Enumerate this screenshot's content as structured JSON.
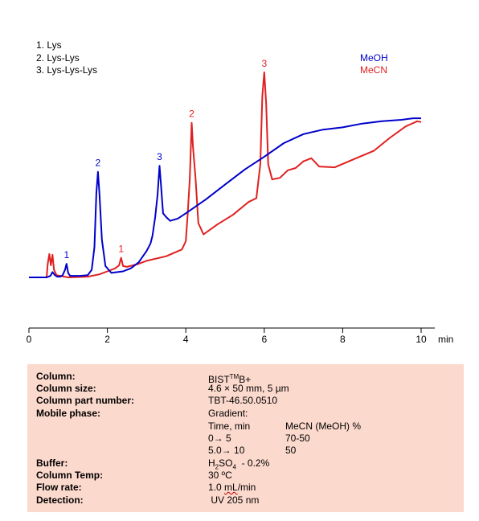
{
  "chart_data": {
    "type": "line",
    "x_axis": {
      "ticks": [
        0,
        2,
        4,
        6,
        8,
        10
      ],
      "tick_labels": [
        "0",
        "2",
        "4",
        "6",
        "8",
        "10"
      ],
      "unit_label": "min",
      "range": [
        0,
        10
      ]
    },
    "legend_peaks": [
      "1. Lys",
      "2. Lys-Lys",
      "3. Lys-Lys-Lys"
    ],
    "series": [
      {
        "name": "MeOH",
        "color": "#0000cc",
        "points": [
          [
            0,
            0
          ],
          [
            0.45,
            0
          ],
          [
            0.5,
            1
          ],
          [
            0.55,
            2
          ],
          [
            0.6,
            7
          ],
          [
            0.66,
            3
          ],
          [
            0.72,
            1
          ],
          [
            0.8,
            1
          ],
          [
            0.86,
            3
          ],
          [
            0.92,
            10
          ],
          [
            0.96,
            18
          ],
          [
            1.0,
            6
          ],
          [
            1.05,
            2
          ],
          [
            1.3,
            2
          ],
          [
            1.5,
            3
          ],
          [
            1.6,
            10
          ],
          [
            1.67,
            40
          ],
          [
            1.72,
            112
          ],
          [
            1.76,
            140
          ],
          [
            1.8,
            110
          ],
          [
            1.86,
            50
          ],
          [
            1.95,
            15
          ],
          [
            2.1,
            6
          ],
          [
            2.4,
            8
          ],
          [
            2.6,
            12
          ],
          [
            2.8,
            20
          ],
          [
            3.0,
            35
          ],
          [
            3.1,
            45
          ],
          [
            3.15,
            55
          ],
          [
            3.22,
            80
          ],
          [
            3.28,
            110
          ],
          [
            3.33,
            148
          ],
          [
            3.37,
            120
          ],
          [
            3.42,
            85
          ],
          [
            3.5,
            80
          ],
          [
            3.6,
            75
          ],
          [
            3.8,
            78
          ],
          [
            4.0,
            85
          ],
          [
            4.5,
            103
          ],
          [
            5.0,
            123
          ],
          [
            5.5,
            143
          ],
          [
            6.0,
            160
          ],
          [
            6.5,
            178
          ],
          [
            7.0,
            190
          ],
          [
            7.5,
            196
          ],
          [
            8.0,
            199
          ],
          [
            8.5,
            204
          ],
          [
            9.0,
            207
          ],
          [
            9.5,
            209
          ],
          [
            9.8,
            211
          ],
          [
            10.0,
            211
          ]
        ]
      },
      {
        "name": "MeCN",
        "color": "#e02020",
        "points": [
          [
            0,
            0
          ],
          [
            0.45,
            0
          ],
          [
            0.48,
            18
          ],
          [
            0.52,
            31
          ],
          [
            0.56,
            16
          ],
          [
            0.6,
            30
          ],
          [
            0.64,
            10
          ],
          [
            0.7,
            3
          ],
          [
            0.8,
            2
          ],
          [
            1.0,
            0
          ],
          [
            1.5,
            1
          ],
          [
            1.8,
            4
          ],
          [
            2.0,
            8
          ],
          [
            2.2,
            12
          ],
          [
            2.3,
            16
          ],
          [
            2.35,
            26
          ],
          [
            2.4,
            15
          ],
          [
            2.5,
            14
          ],
          [
            2.8,
            18
          ],
          [
            3.0,
            22
          ],
          [
            3.5,
            28
          ],
          [
            3.9,
            37
          ],
          [
            4.0,
            48
          ],
          [
            4.05,
            85
          ],
          [
            4.1,
            130
          ],
          [
            4.15,
            205
          ],
          [
            4.18,
            175
          ],
          [
            4.25,
            130
          ],
          [
            4.32,
            72
          ],
          [
            4.45,
            57
          ],
          [
            4.8,
            70
          ],
          [
            5.2,
            83
          ],
          [
            5.6,
            100
          ],
          [
            5.8,
            105
          ],
          [
            5.9,
            150
          ],
          [
            5.95,
            240
          ],
          [
            6.0,
            272
          ],
          [
            6.05,
            230
          ],
          [
            6.1,
            150
          ],
          [
            6.2,
            130
          ],
          [
            6.4,
            132
          ],
          [
            6.6,
            142
          ],
          [
            6.8,
            145
          ],
          [
            7.0,
            154
          ],
          [
            7.2,
            158
          ],
          [
            7.4,
            147
          ],
          [
            7.8,
            146
          ],
          [
            8.3,
            157
          ],
          [
            8.8,
            168
          ],
          [
            9.2,
            185
          ],
          [
            9.6,
            200
          ],
          [
            9.9,
            207
          ],
          [
            10.0,
            206
          ]
        ]
      }
    ],
    "peak_labels": [
      {
        "text": "1",
        "series": "MeOH",
        "x": 0.96,
        "y": 18
      },
      {
        "text": "2",
        "series": "MeOH",
        "x": 1.76,
        "y": 140
      },
      {
        "text": "3",
        "series": "MeOH",
        "x": 3.33,
        "y": 148
      },
      {
        "text": "1",
        "series": "MeCN",
        "x": 2.35,
        "y": 26
      },
      {
        "text": "2",
        "series": "MeCN",
        "x": 4.15,
        "y": 205
      },
      {
        "text": "3",
        "series": "MeCN",
        "x": 6.0,
        "y": 272
      }
    ],
    "y_range": [
      0,
      290
    ],
    "grid": false,
    "legend_placement": "top-right"
  },
  "conditions": {
    "column_label": "Column:",
    "column_value_prefix": "BIST",
    "column_value_tm": "TM",
    "column_value_suffix": "B+",
    "column_size_label": "Column size:",
    "column_size_value": "4.6 × 50 mm, 5 µm",
    "part_number_label": "Column part number:",
    "part_number_value": "TBT-46.50.0510",
    "mobile_phase_label": "Mobile phase:",
    "mobile_phase_value": "Gradient:",
    "gradient_header_time": "Time, min",
    "gradient_header_percent": "MeCN (MeOH) %",
    "gradient_row1_time": "0→ 5",
    "gradient_row1_percent": "70-50",
    "gradient_row2_time": "5.0→ 10",
    "gradient_row2_percent": "50",
    "buffer_label": "Buffer:",
    "buffer_value_h": "H",
    "buffer_value_sub2": "2",
    "buffer_value_so": "SO",
    "buffer_value_sub4": "4",
    "buffer_value_rest": "  - 0.2%",
    "column_temp_label": "Column Temp:",
    "column_temp_value": "30 ºC",
    "flow_rate_label": "Flow rate:",
    "flow_rate_value_pre": "1.0 ",
    "flow_rate_value_unit": "mL",
    "flow_rate_value_post": "/min",
    "detection_label": "Detection:",
    "detection_value": " UV 205 nm"
  }
}
